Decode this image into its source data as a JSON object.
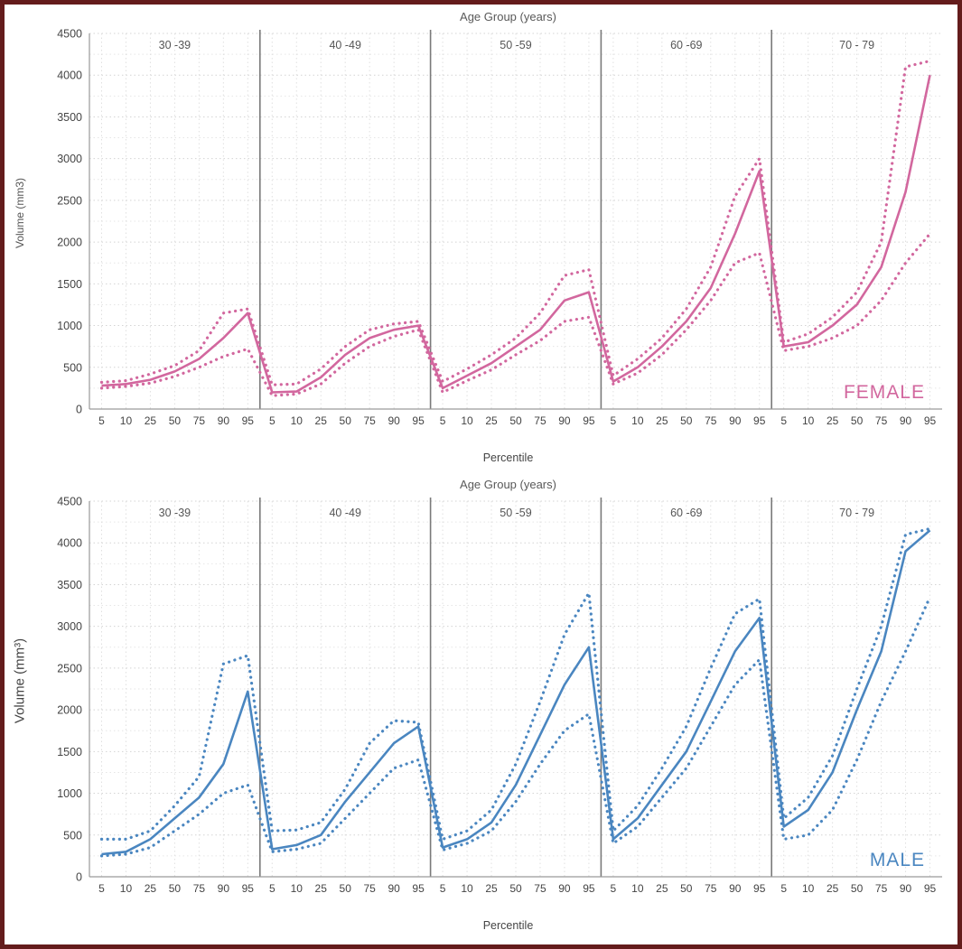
{
  "page": {
    "background": "#ffffff",
    "border_color": "#641c1c"
  },
  "chart_data": [
    {
      "type": "line",
      "gender_label": "FEMALE",
      "title": "Age Group (years)",
      "xlabel": "Percentile",
      "ylabel": "Volume (mm3)",
      "color": "#d2679e",
      "ylim": [
        0,
        4500
      ],
      "ytick_step": 500,
      "grid": true,
      "age_groups": [
        "30 -39",
        "40 -49",
        "50 -59",
        "60 -69",
        "70 - 79"
      ],
      "percentiles": [
        5,
        10,
        25,
        50,
        75,
        90,
        95
      ],
      "series": [
        {
          "name": "median",
          "style": "solid",
          "values_by_age_group": [
            [
              280,
              300,
              350,
              450,
              600,
              850,
              1150
            ],
            [
              200,
              210,
              380,
              650,
              850,
              950,
              1000
            ],
            [
              250,
              400,
              550,
              750,
              950,
              1300,
              1400
            ],
            [
              330,
              500,
              750,
              1050,
              1450,
              2100,
              2850
            ],
            [
              750,
              800,
              1000,
              1250,
              1700,
              2600,
              4000
            ]
          ]
        },
        {
          "name": "upper-bound",
          "style": "dotted",
          "values_by_age_group": [
            [
              320,
              340,
              420,
              520,
              700,
              1150,
              1200
            ],
            [
              290,
              300,
              480,
              750,
              950,
              1020,
              1050
            ],
            [
              330,
              480,
              650,
              850,
              1150,
              1600,
              1670
            ],
            [
              400,
              600,
              850,
              1200,
              1700,
              2550,
              3000
            ],
            [
              800,
              900,
              1100,
              1400,
              2000,
              4100,
              4170
            ]
          ]
        },
        {
          "name": "lower-bound",
          "style": "dotted",
          "values_by_age_group": [
            [
              250,
              270,
              310,
              390,
              500,
              630,
              720
            ],
            [
              160,
              180,
              300,
              550,
              750,
              870,
              950
            ],
            [
              200,
              340,
              470,
              650,
              820,
              1050,
              1100
            ],
            [
              300,
              430,
              650,
              950,
              1300,
              1750,
              1870
            ],
            [
              700,
              750,
              850,
              1000,
              1300,
              1750,
              2100
            ]
          ]
        }
      ]
    },
    {
      "type": "line",
      "gender_label": "MALE",
      "title": "Age Group (years)",
      "xlabel": "Percentile",
      "ylabel": "Volume (mm³)",
      "color": "#4a86c0",
      "ylim": [
        0,
        4500
      ],
      "ytick_step": 500,
      "grid": true,
      "age_groups": [
        "30 -39",
        "40 -49",
        "50 -59",
        "60 -69",
        "70 - 79"
      ],
      "percentiles": [
        5,
        10,
        25,
        50,
        75,
        90,
        95
      ],
      "series": [
        {
          "name": "median",
          "style": "solid",
          "values_by_age_group": [
            [
              270,
              300,
              450,
              700,
              950,
              1350,
              2220
            ],
            [
              330,
              380,
              500,
              900,
              1250,
              1600,
              1800
            ],
            [
              350,
              450,
              650,
              1100,
              1700,
              2300,
              2750
            ],
            [
              450,
              700,
              1100,
              1500,
              2100,
              2700,
              3100
            ],
            [
              600,
              800,
              1250,
              2000,
              2700,
              3900,
              4150
            ]
          ]
        },
        {
          "name": "upper-bound",
          "style": "dotted",
          "values_by_age_group": [
            [
              450,
              450,
              550,
              850,
              1200,
              2550,
              2650
            ],
            [
              550,
              560,
              650,
              1050,
              1600,
              1870,
              1850
            ],
            [
              450,
              550,
              800,
              1350,
              2100,
              2900,
              3400
            ],
            [
              550,
              850,
              1300,
              1800,
              2500,
              3150,
              3330
            ],
            [
              700,
              950,
              1450,
              2250,
              3000,
              4100,
              4170
            ]
          ]
        },
        {
          "name": "lower-bound",
          "style": "dotted",
          "values_by_age_group": [
            [
              250,
              270,
              350,
              550,
              750,
              1000,
              1100
            ],
            [
              300,
              330,
              400,
              700,
              1000,
              1300,
              1400
            ],
            [
              320,
              400,
              550,
              900,
              1350,
              1750,
              1950
            ],
            [
              400,
              600,
              950,
              1300,
              1800,
              2300,
              2600
            ],
            [
              450,
              500,
              800,
              1400,
              2100,
              2700,
              3350
            ]
          ]
        }
      ]
    }
  ]
}
